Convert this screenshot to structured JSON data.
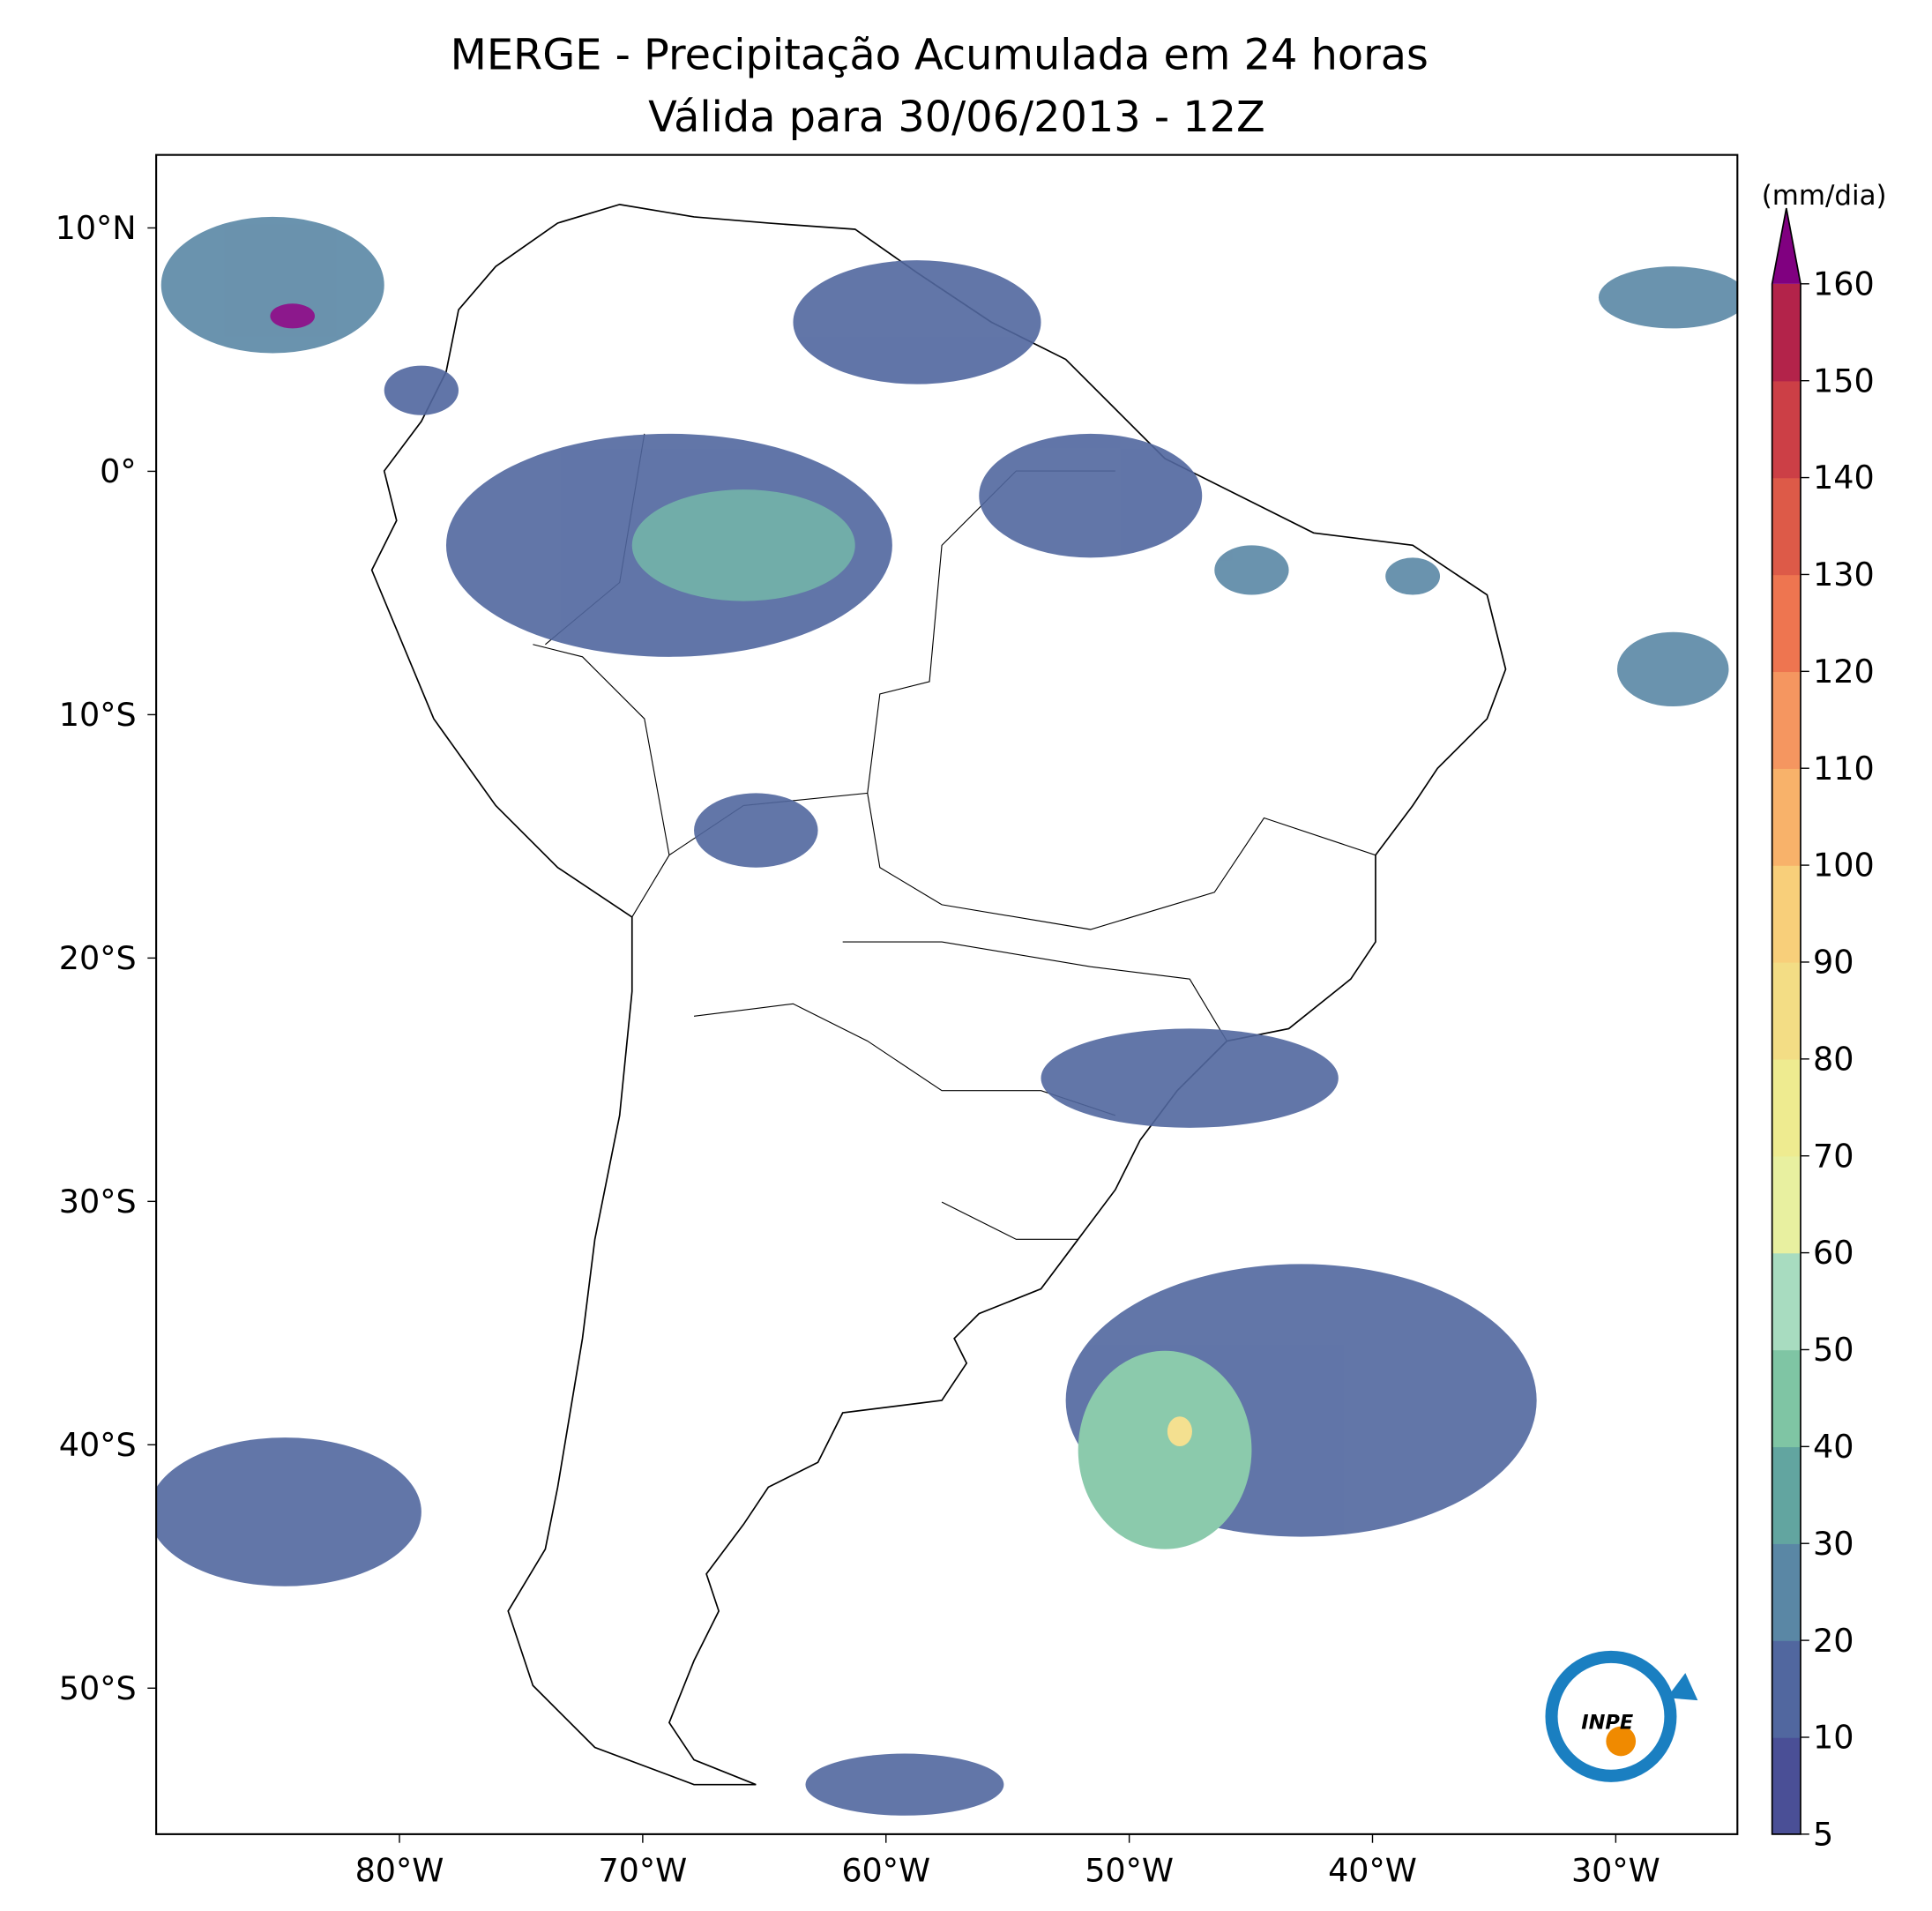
{
  "chart_data": {
    "type": "map",
    "title": "MERGE - Precipitação Acumulada em 24 horas",
    "subtitle": "Válida para 30/06/2013 - 12Z",
    "xlim": [
      -90,
      -25
    ],
    "ylim": [
      -56,
      13
    ],
    "xticks": [
      {
        "value": -80,
        "label": "80°W"
      },
      {
        "value": -70,
        "label": "70°W"
      },
      {
        "value": -60,
        "label": "60°W"
      },
      {
        "value": -50,
        "label": "50°W"
      },
      {
        "value": -40,
        "label": "40°W"
      },
      {
        "value": -30,
        "label": "30°W"
      }
    ],
    "yticks": [
      {
        "value": 10,
        "label": "10°N"
      },
      {
        "value": 0,
        "label": "0°"
      },
      {
        "value": -10,
        "label": "10°S"
      },
      {
        "value": -20,
        "label": "20°S"
      },
      {
        "value": -30,
        "label": "30°S"
      },
      {
        "value": -40,
        "label": "40°S"
      },
      {
        "value": -50,
        "label": "50°S"
      }
    ],
    "colorbar": {
      "label": "(mm/dia)",
      "ticks": [
        5,
        10,
        20,
        30,
        40,
        50,
        60,
        70,
        80,
        90,
        100,
        110,
        120,
        130,
        140,
        150,
        160
      ],
      "colors": [
        "#4a4f96",
        "#51679f",
        "#5a87a5",
        "#62a5a0",
        "#7fc5a4",
        "#a8dcc0",
        "#e8f0a0",
        "#eeeb90",
        "#f3dd85",
        "#f8cf7a",
        "#f8b26a",
        "#f59660",
        "#ee7550",
        "#dd5a48",
        "#cc3f46",
        "#b3234a"
      ],
      "extend_color": "#800080"
    }
  },
  "logo": {
    "text": "INPE"
  }
}
